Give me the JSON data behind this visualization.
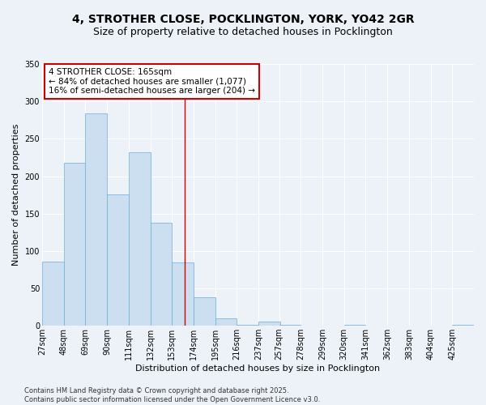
{
  "title_line1": "4, STROTHER CLOSE, POCKLINGTON, YORK, YO42 2GR",
  "title_line2": "Size of property relative to detached houses in Pocklington",
  "xlabel": "Distribution of detached houses by size in Pocklington",
  "ylabel": "Number of detached properties",
  "bar_color": "#ccdff0",
  "bar_edge_color": "#6aaed6",
  "background_color": "#edf2f9",
  "grid_color": "#ffffff",
  "annotation_text_line1": "4 STROTHER CLOSE: 165sqm",
  "annotation_text_line2": "← 84% of detached houses are smaller (1,077)",
  "annotation_text_line3": "16% of semi-detached houses are larger (204) →",
  "vline_x": 165,
  "vline_color": "#cc0000",
  "annotation_box_color": "#ffffff",
  "annotation_box_edge": "#cc0000",
  "bins": [
    27,
    48,
    69,
    90,
    111,
    132,
    153,
    174,
    195,
    216,
    237,
    257,
    278,
    299,
    320,
    341,
    362,
    383,
    404,
    425,
    446
  ],
  "counts": [
    86,
    218,
    284,
    176,
    232,
    138,
    85,
    38,
    10,
    1,
    6,
    1,
    0,
    0,
    1,
    0,
    0,
    0,
    0,
    1
  ],
  "ylim": [
    0,
    350
  ],
  "yticks": [
    0,
    50,
    100,
    150,
    200,
    250,
    300,
    350
  ],
  "footnote": "Contains HM Land Registry data © Crown copyright and database right 2025.\nContains public sector information licensed under the Open Government Licence v3.0.",
  "title_fontsize": 10,
  "subtitle_fontsize": 9,
  "axis_label_fontsize": 8,
  "tick_fontsize": 7,
  "annotation_fontsize": 7.5,
  "footnote_fontsize": 6
}
